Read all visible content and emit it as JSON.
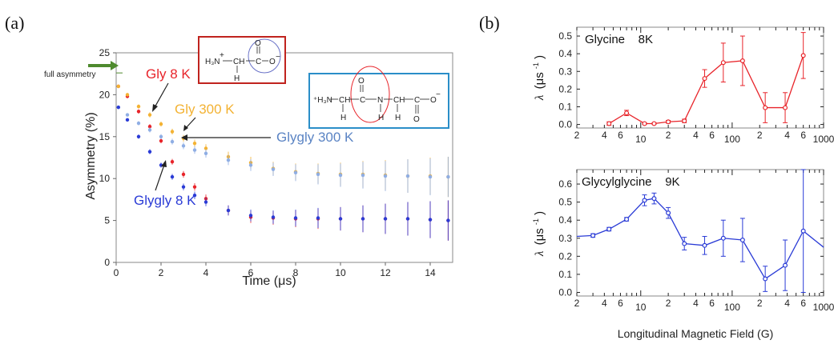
{
  "chart_data": [
    {
      "panel": "(a)",
      "type": "scatter",
      "xlabel": "Time (μs)",
      "ylabel": "Asymmetry (%)",
      "xlim": [
        0,
        15
      ],
      "ylim": [
        0,
        25
      ],
      "xticks": [
        0,
        2,
        4,
        6,
        8,
        10,
        12,
        14
      ],
      "yticks": [
        0,
        5,
        10,
        15,
        20,
        25
      ],
      "grid": false,
      "full_asymmetry_label": "full asymmetry",
      "full_asymmetry_value": 22.6,
      "series": [
        {
          "name": "Gly 8 K",
          "color": "#e8242a",
          "x": [
            0.1,
            0.5,
            1.0,
            1.5,
            2.0,
            2.5,
            3.0,
            3.5,
            4.0,
            5.0,
            6.0,
            7.0,
            8.0,
            9.0,
            10.0,
            11.0,
            12.0,
            13.0,
            14.0,
            14.8
          ],
          "y": [
            21.0,
            19.8,
            18.0,
            16.2,
            14.5,
            12.0,
            10.5,
            9.0,
            7.6,
            6.2,
            5.4,
            5.3,
            5.2,
            5.2,
            5.2,
            5.2,
            5.2,
            5.2,
            5.1,
            5.0
          ],
          "err": [
            0.2,
            0.2,
            0.25,
            0.3,
            0.3,
            0.35,
            0.4,
            0.45,
            0.5,
            0.6,
            0.7,
            0.8,
            1.0,
            1.2,
            1.4,
            1.6,
            1.8,
            2.0,
            2.2,
            2.4
          ]
        },
        {
          "name": "Gly 300 K",
          "color": "#f3b233",
          "x": [
            0.1,
            0.5,
            1.0,
            1.5,
            2.0,
            2.5,
            3.0,
            3.5,
            4.0,
            5.0,
            6.0,
            7.0,
            8.0,
            9.0,
            10.0,
            11.0,
            12.0,
            13.0,
            14.0,
            14.8
          ],
          "y": [
            21.0,
            20.0,
            18.6,
            17.6,
            16.5,
            15.6,
            14.8,
            14.2,
            13.6,
            12.6,
            11.9,
            11.2,
            10.8,
            10.6,
            10.5,
            10.5,
            10.4,
            10.3,
            10.3,
            10.2
          ],
          "err": [
            0.2,
            0.2,
            0.25,
            0.3,
            0.3,
            0.35,
            0.4,
            0.45,
            0.5,
            0.6,
            0.7,
            0.8,
            1.0,
            1.2,
            1.4,
            1.6,
            1.8,
            2.0,
            2.2,
            2.4
          ]
        },
        {
          "name": "Glygly 300 K",
          "color": "#8faee4",
          "x": [
            0.1,
            0.5,
            1.0,
            1.5,
            2.0,
            2.5,
            3.0,
            3.5,
            4.0,
            5.0,
            6.0,
            7.0,
            8.0,
            9.0,
            10.0,
            11.0,
            12.0,
            13.0,
            14.0,
            14.8
          ],
          "y": [
            18.5,
            17.6,
            16.6,
            15.8,
            15.0,
            14.4,
            13.9,
            13.4,
            13.0,
            12.2,
            11.6,
            11.1,
            10.7,
            10.5,
            10.4,
            10.4,
            10.3,
            10.3,
            10.2,
            10.2
          ],
          "err": [
            0.2,
            0.2,
            0.25,
            0.3,
            0.3,
            0.35,
            0.4,
            0.45,
            0.5,
            0.6,
            0.7,
            0.8,
            1.0,
            1.2,
            1.4,
            1.6,
            1.8,
            2.0,
            2.2,
            2.4
          ]
        },
        {
          "name": "Glygly 8 K",
          "color": "#2a3bd6",
          "x": [
            0.1,
            0.5,
            1.0,
            1.5,
            2.0,
            2.5,
            3.0,
            3.5,
            4.0,
            5.0,
            6.0,
            7.0,
            8.0,
            9.0,
            10.0,
            11.0,
            12.0,
            13.0,
            14.0,
            14.8
          ],
          "y": [
            18.5,
            17.0,
            15.0,
            13.2,
            11.6,
            10.2,
            9.0,
            8.0,
            7.2,
            6.2,
            5.6,
            5.4,
            5.3,
            5.3,
            5.2,
            5.2,
            5.2,
            5.2,
            5.1,
            5.0
          ],
          "err": [
            0.2,
            0.2,
            0.25,
            0.3,
            0.3,
            0.35,
            0.4,
            0.45,
            0.5,
            0.6,
            0.7,
            0.8,
            1.0,
            1.2,
            1.4,
            1.6,
            1.8,
            2.0,
            2.2,
            2.4
          ]
        }
      ],
      "annotations": [
        {
          "text": "Gly 8 K",
          "color": "#e8242a"
        },
        {
          "text": "Gly 300 K",
          "color": "#f3b233"
        },
        {
          "text": "Glygly 300 K",
          "color": "#5b84c4"
        },
        {
          "text": "Glygly 8 K",
          "color": "#2a3bd6"
        }
      ],
      "structures": {
        "glycine": {
          "nh3": "H₃N",
          "plus": "+",
          "ch": "CH",
          "c": "C",
          "o_minus": "O",
          "minus": "−",
          "o_double": "O",
          "h": "H"
        },
        "glycylglycine": {
          "nh3": "⁺H₃N",
          "ch1": "CH",
          "c1": "C",
          "n": "N",
          "ch2": "CH",
          "c2": "C",
          "o_minus": "O",
          "minus": "−",
          "o1": "O",
          "o2": "O",
          "h1": "H",
          "h2": "H",
          "h3": "H"
        }
      }
    },
    {
      "panel": "(b)",
      "type": "line",
      "label": "Glycine    8K",
      "ylabel_main": "λ",
      "ylabel_unit": "(μs",
      "ylabel_sup": "-1",
      "ylabel_close": ")",
      "xscale": "log",
      "xlim": [
        2,
        1000
      ],
      "ylim": [
        -0.02,
        0.55
      ],
      "yticks": [
        0.0,
        0.1,
        0.2,
        0.3,
        0.4,
        0.5
      ],
      "xtick_labels": [
        {
          "v": 2,
          "t": "2"
        },
        {
          "v": 4,
          "t": "4"
        },
        {
          "v": 6,
          "t": "6"
        },
        {
          "v": 10,
          "t": "10"
        },
        {
          "v": 20,
          "t": "2"
        },
        {
          "v": 40,
          "t": "4"
        },
        {
          "v": 60,
          "t": "6"
        },
        {
          "v": 100,
          "t": "100"
        },
        {
          "v": 200,
          "t": "2"
        },
        {
          "v": 400,
          "t": "4"
        },
        {
          "v": 600,
          "t": "6"
        },
        {
          "v": 1000,
          "t": "1000"
        }
      ],
      "color": "#e8242a",
      "x": [
        4.5,
        7,
        11,
        14,
        20,
        30,
        50,
        80,
        130,
        230,
        380,
        600
      ],
      "y": [
        0.005,
        0.065,
        0.005,
        0.005,
        0.015,
        0.02,
        0.26,
        0.35,
        0.36,
        0.095,
        0.095,
        0.39
      ],
      "err": [
        0.01,
        0.015,
        0.005,
        0.005,
        0.008,
        0.01,
        0.05,
        0.11,
        0.14,
        0.085,
        0.085,
        0.13
      ]
    },
    {
      "panel": "(b)",
      "type": "line",
      "label": "Glycylglycine    9K",
      "ylabel_main": "λ",
      "ylabel_unit": "(μs",
      "ylabel_sup": "-1",
      "ylabel_close": ")",
      "xscale": "log",
      "xlim": [
        2,
        1000
      ],
      "ylim": [
        -0.02,
        0.68
      ],
      "yticks": [
        0.0,
        0.1,
        0.2,
        0.3,
        0.4,
        0.5,
        0.6
      ],
      "xtick_labels": [
        {
          "v": 2,
          "t": "2"
        },
        {
          "v": 4,
          "t": "4"
        },
        {
          "v": 6,
          "t": "6"
        },
        {
          "v": 10,
          "t": "10"
        },
        {
          "v": 20,
          "t": "2"
        },
        {
          "v": 40,
          "t": "4"
        },
        {
          "v": 60,
          "t": "6"
        },
        {
          "v": 100,
          "t": "100"
        },
        {
          "v": 200,
          "t": "2"
        },
        {
          "v": 400,
          "t": "4"
        },
        {
          "v": 600,
          "t": "6"
        },
        {
          "v": 1000,
          "t": "1000"
        }
      ],
      "xlabel": "Longitudinal Magnetic Field (G)",
      "color": "#2a3bd6",
      "x": [
        2,
        3,
        4.5,
        7,
        11,
        14,
        20,
        30,
        50,
        80,
        130,
        230,
        380,
        600,
        1000
      ],
      "y": [
        0.31,
        0.315,
        0.35,
        0.405,
        0.51,
        0.52,
        0.44,
        0.27,
        0.26,
        0.3,
        0.29,
        0.075,
        0.15,
        0.34,
        0.25
      ],
      "err": [
        null,
        0.01,
        0.01,
        0.01,
        0.03,
        0.03,
        0.03,
        0.035,
        0.05,
        0.1,
        0.12,
        0.07,
        0.14,
        0.34,
        null
      ]
    }
  ]
}
